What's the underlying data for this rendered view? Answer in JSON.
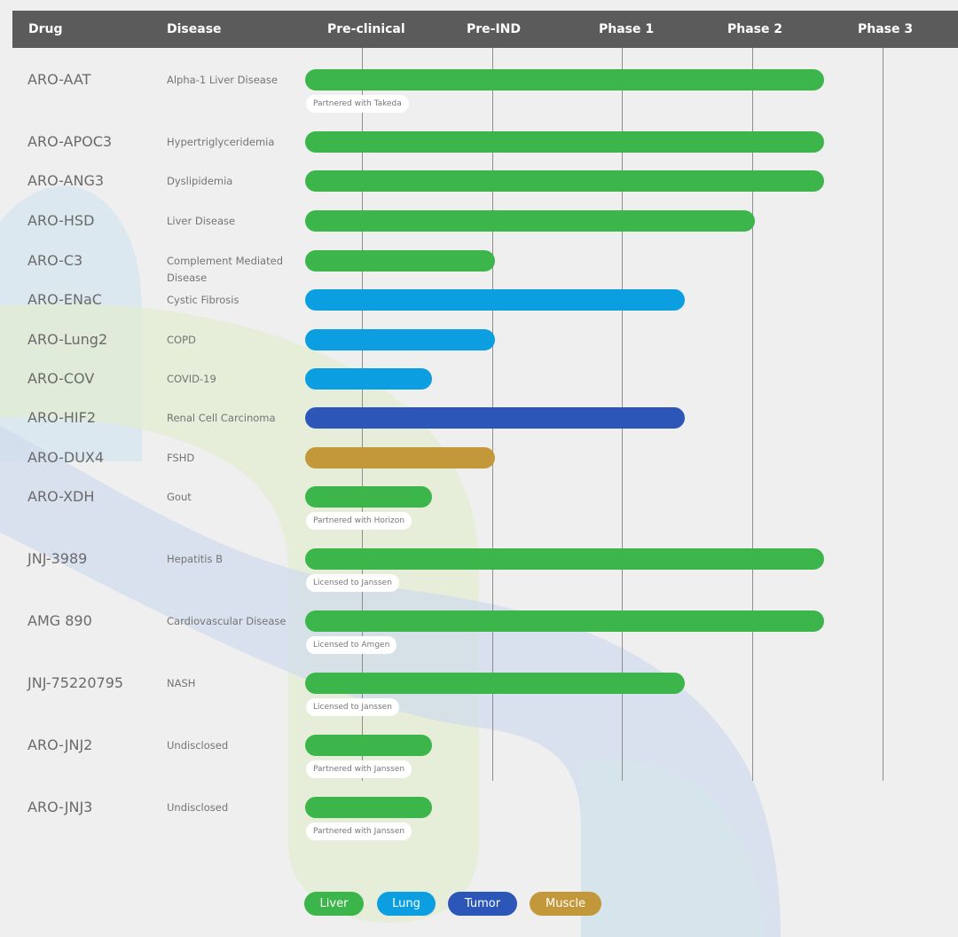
{
  "colors": {
    "liver": "#3cb54a",
    "lung": "#0b9ee0",
    "tumor": "#2c56b8",
    "muscle": "#c2983a",
    "header": "#5b5b5b"
  },
  "chart_data": {
    "type": "bar",
    "orientation": "horizontal-range",
    "columns": {
      "drug": "Drug",
      "disease": "Disease",
      "stages": [
        "Pre-clinical",
        "Pre-IND",
        "Phase 1",
        "Phase 2",
        "Phase 3"
      ]
    },
    "rows": [
      {
        "drug": "ARO-AAT",
        "disease": "Alpha-1 Liver Disease",
        "category": "liver",
        "progress": 3.5,
        "note": "Partnered with Takeda"
      },
      {
        "drug": "ARO-APOC3",
        "disease": "Hypertriglyceridemia",
        "category": "liver",
        "progress": 3.5,
        "note": ""
      },
      {
        "drug": "ARO-ANG3",
        "disease": "Dyslipidemia",
        "category": "liver",
        "progress": 3.5,
        "note": ""
      },
      {
        "drug": "ARO-HSD",
        "disease": "Liver Disease",
        "category": "liver",
        "progress": 3.0,
        "note": ""
      },
      {
        "drug": "ARO-C3",
        "disease": "Complement Mediated Disease",
        "category": "liver",
        "progress": 1.0,
        "note": ""
      },
      {
        "drug": "ARO-ENaC",
        "disease": "Cystic Fibrosis",
        "category": "lung",
        "progress": 2.5,
        "note": ""
      },
      {
        "drug": "ARO-Lung2",
        "disease": "COPD",
        "category": "lung",
        "progress": 1.0,
        "note": ""
      },
      {
        "drug": "ARO-COV",
        "disease": "COVID-19",
        "category": "lung",
        "progress": 0.5,
        "note": ""
      },
      {
        "drug": "ARO-HIF2",
        "disease": "Renal Cell Carcinoma",
        "category": "tumor",
        "progress": 2.5,
        "note": ""
      },
      {
        "drug": "ARO-DUX4",
        "disease": "FSHD",
        "category": "muscle",
        "progress": 1.0,
        "note": ""
      },
      {
        "drug": "ARO-XDH",
        "disease": "Gout",
        "category": "liver",
        "progress": 0.5,
        "note": "Partnered with Horizon"
      },
      {
        "drug": "JNJ-3989",
        "disease": "Hepatitis B",
        "category": "liver",
        "progress": 3.5,
        "note": "Licensed to Janssen"
      },
      {
        "drug": "AMG 890",
        "disease": "Cardiovascular Disease",
        "category": "liver",
        "progress": 3.5,
        "note": "Licensed to Amgen"
      },
      {
        "drug": "JNJ-75220795",
        "disease": "NASH",
        "category": "liver",
        "progress": 2.5,
        "note": "Licensed to Janssen"
      },
      {
        "drug": "ARO-JNJ2",
        "disease": "Undisclosed",
        "category": "liver",
        "progress": 0.5,
        "note": "Partnered with Janssen"
      },
      {
        "drug": "ARO-JNJ3",
        "disease": "Undisclosed",
        "category": "liver",
        "progress": 0.5,
        "note": "Partnered with Janssen"
      }
    ],
    "legend": [
      {
        "key": "liver",
        "label": "Liver"
      },
      {
        "key": "lung",
        "label": "Lung"
      },
      {
        "key": "tumor",
        "label": "Tumor"
      },
      {
        "key": "muscle",
        "label": "Muscle"
      }
    ],
    "legend_position": "bottom-center"
  }
}
